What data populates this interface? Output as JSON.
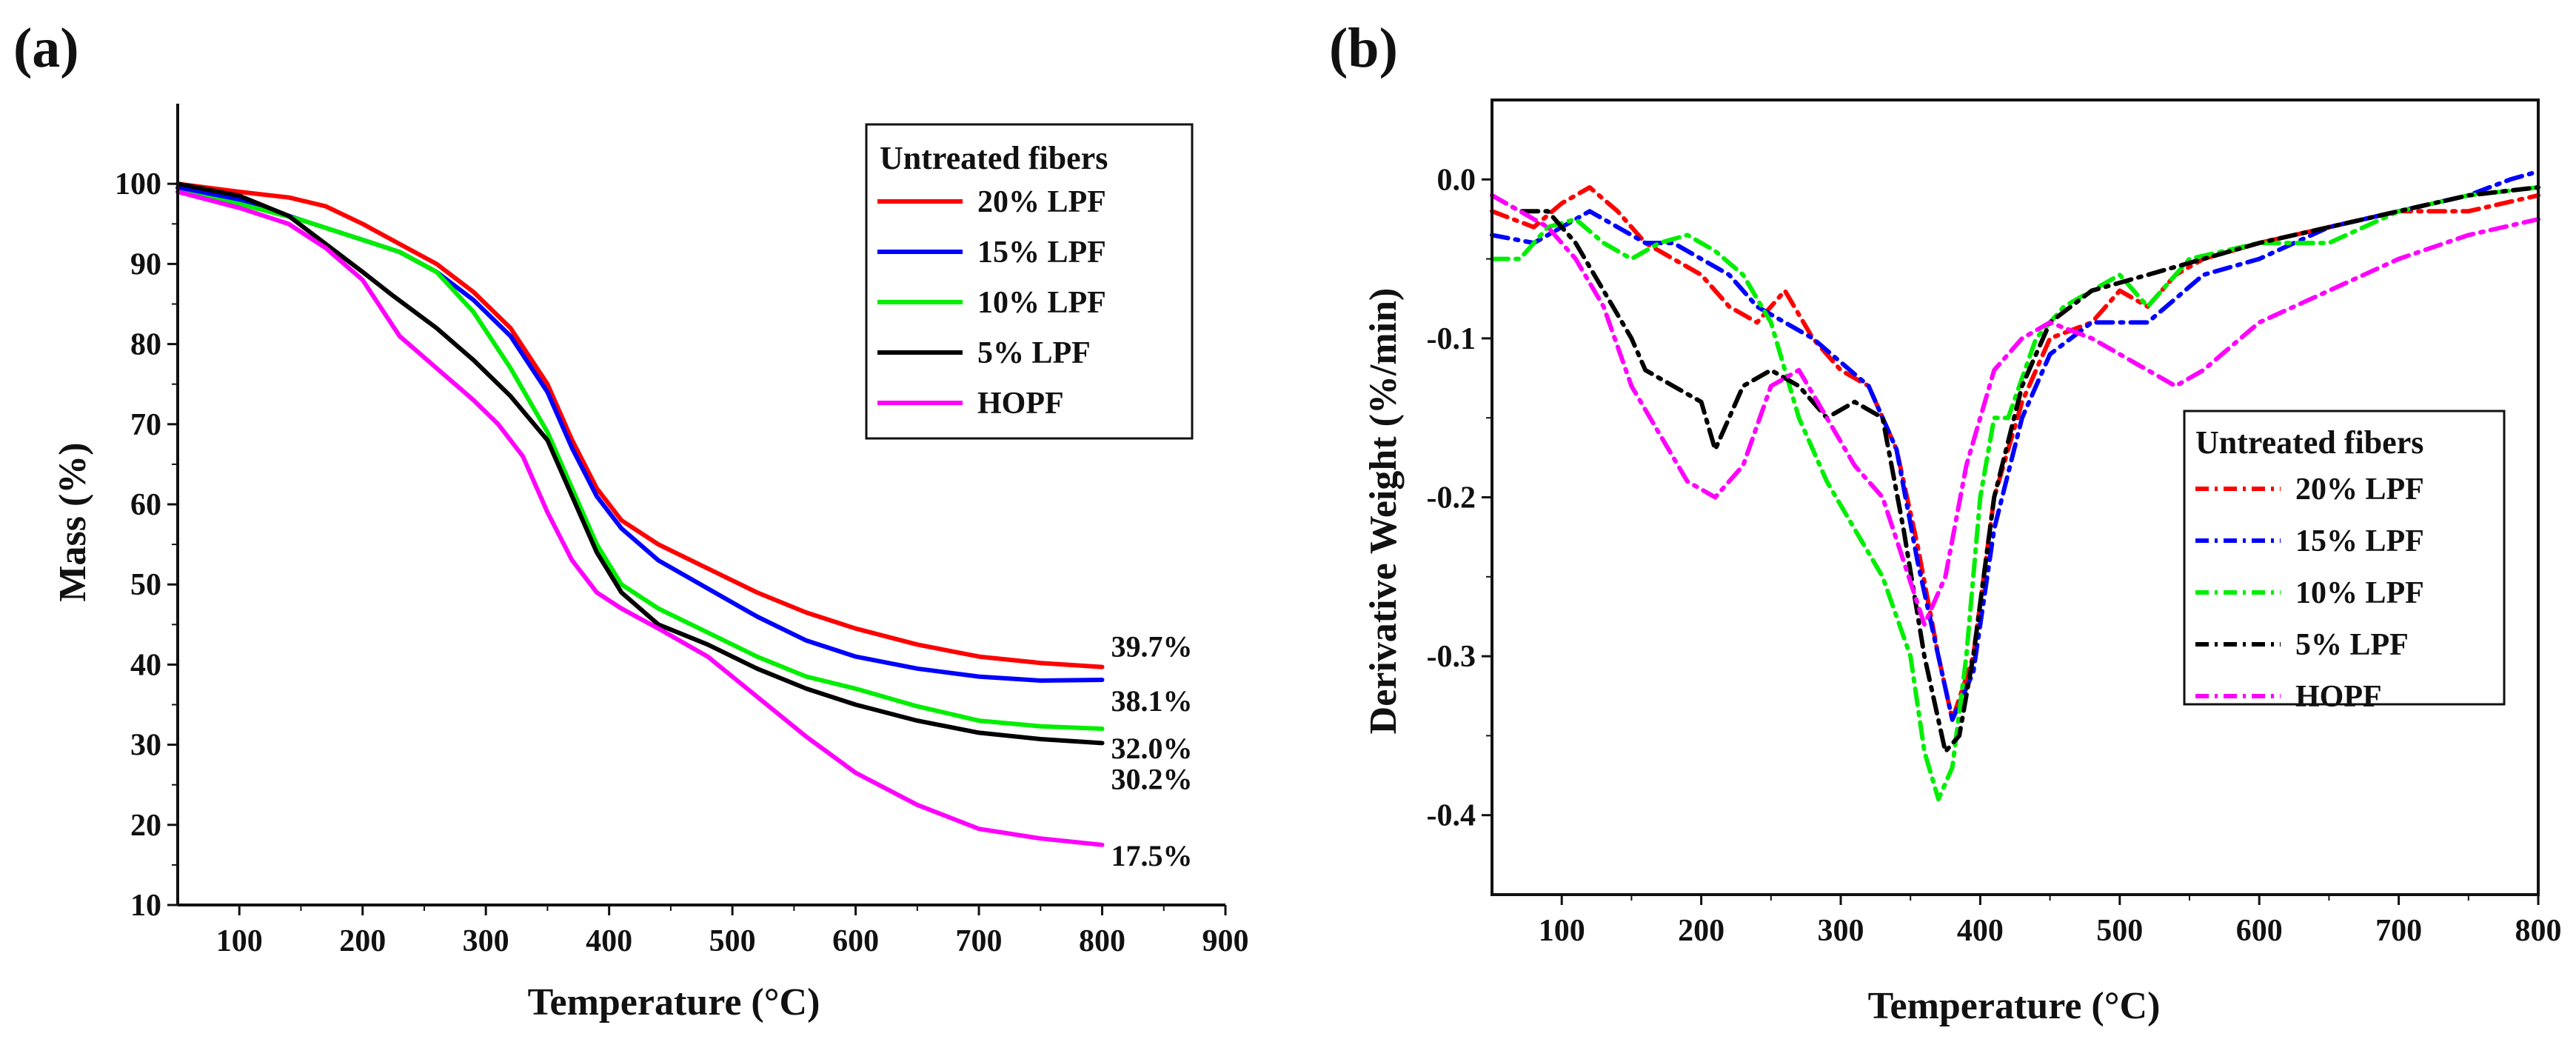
{
  "chart_data": [
    {
      "type": "line",
      "panel_label": "(a)",
      "xlabel": "Temperature (°C)",
      "ylabel": "Mass (%)",
      "xlim": [
        50,
        900
      ],
      "ylim": [
        10,
        110
      ],
      "xticks": [
        100,
        200,
        300,
        400,
        500,
        600,
        700,
        800,
        900
      ],
      "yticks": [
        10,
        20,
        30,
        40,
        50,
        60,
        70,
        80,
        90,
        100
      ],
      "legend_title": "Untreated fibers",
      "legend_position": "top-right",
      "series": [
        {
          "name": " 20% LPF",
          "color": "#ff0000",
          "dash": "solid",
          "end_label": "39.7%",
          "x": [
            50,
            100,
            140,
            170,
            200,
            230,
            260,
            290,
            320,
            350,
            370,
            390,
            410,
            440,
            480,
            520,
            560,
            600,
            650,
            700,
            750,
            800
          ],
          "y": [
            100,
            99,
            98.3,
            97.2,
            95,
            92.5,
            90,
            86.5,
            82,
            75,
            68,
            62,
            58,
            55,
            52,
            49,
            46.5,
            44.5,
            42.5,
            41,
            40.2,
            39.7
          ]
        },
        {
          "name": "15% LPF",
          "color": "#0000ff",
          "dash": "solid",
          "end_label": "38.1%",
          "x": [
            50,
            100,
            140,
            170,
            200,
            230,
            260,
            290,
            320,
            350,
            370,
            390,
            410,
            440,
            480,
            520,
            560,
            600,
            650,
            700,
            750,
            800
          ],
          "y": [
            99.5,
            98,
            96,
            94.5,
            93,
            91.5,
            89,
            85.5,
            81,
            74,
            67,
            61,
            57,
            53,
            49.5,
            46,
            43,
            41,
            39.5,
            38.5,
            38,
            38.1
          ]
        },
        {
          "name": "10% LPF",
          "color": "#00ee00",
          "dash": "solid",
          "end_label": "32.0%",
          "x": [
            50,
            100,
            150,
            200,
            230,
            260,
            290,
            320,
            350,
            370,
            390,
            410,
            440,
            480,
            520,
            560,
            600,
            650,
            700,
            750,
            800
          ],
          "y": [
            99,
            97.5,
            95.5,
            93,
            91.5,
            89,
            84,
            77,
            69,
            62,
            55,
            50,
            47,
            44,
            41,
            38.5,
            37,
            34.8,
            33,
            32.3,
            32.0
          ]
        },
        {
          "name": "5% LPF",
          "color": "#000000",
          "dash": "solid",
          "end_label": "30.2%",
          "x": [
            50,
            100,
            140,
            170,
            200,
            225,
            260,
            290,
            320,
            350,
            370,
            390,
            410,
            440,
            480,
            520,
            560,
            600,
            650,
            700,
            750,
            800
          ],
          "y": [
            100,
            98.5,
            96,
            92.5,
            89,
            86,
            82,
            78,
            73.5,
            68,
            61,
            54,
            49,
            45,
            42.5,
            39.5,
            37,
            35,
            33,
            31.5,
            30.7,
            30.2
          ]
        },
        {
          "name": "HOPF",
          "color": "#ff00ff",
          "dash": "solid",
          "end_label": "17.5%",
          "x": [
            50,
            100,
            140,
            170,
            200,
            230,
            260,
            290,
            310,
            330,
            350,
            370,
            390,
            410,
            440,
            480,
            520,
            560,
            600,
            650,
            700,
            750,
            800
          ],
          "y": [
            99,
            97,
            95,
            92,
            88,
            81,
            77,
            73,
            70,
            66,
            59,
            53,
            49,
            47,
            44.5,
            41,
            36,
            31,
            26.5,
            22.5,
            19.5,
            18.3,
            17.5
          ]
        }
      ]
    },
    {
      "type": "line",
      "panel_label": "(b)",
      "xlabel": "Temperature (°C)",
      "ylabel": "Derivative Weight (%/min)",
      "xlim": [
        50,
        800
      ],
      "ylim": [
        -0.45,
        0.05
      ],
      "xticks": [
        100,
        200,
        300,
        400,
        500,
        600,
        700,
        800
      ],
      "yticks": [
        0.0,
        -0.1,
        -0.2,
        -0.3,
        -0.4
      ],
      "ytick_labels": [
        "0.0",
        "-0.1",
        "-0.2",
        "-0.3",
        "-0.4"
      ],
      "legend_title": "Untreated fibers",
      "legend_position": "center-right",
      "series": [
        {
          "name": "20% LPF",
          "color": "#ff0000",
          "dash": "dashdot",
          "x": [
            50,
            80,
            100,
            120,
            140,
            160,
            180,
            200,
            220,
            240,
            260,
            280,
            300,
            320,
            340,
            355,
            370,
            380,
            395,
            410,
            430,
            450,
            480,
            500,
            520,
            540,
            560,
            600,
            650,
            700,
            750,
            800
          ],
          "y": [
            -0.02,
            -0.03,
            -0.015,
            -0.005,
            -0.02,
            -0.04,
            -0.05,
            -0.06,
            -0.08,
            -0.09,
            -0.07,
            -0.1,
            -0.12,
            -0.13,
            -0.17,
            -0.23,
            -0.3,
            -0.34,
            -0.3,
            -0.2,
            -0.14,
            -0.1,
            -0.09,
            -0.07,
            -0.08,
            -0.06,
            -0.05,
            -0.04,
            -0.03,
            -0.02,
            -0.02,
            -0.01
          ]
        },
        {
          "name": "15% LPF",
          "color": "#0000ff",
          "dash": "dashdot",
          "x": [
            50,
            80,
            100,
            120,
            140,
            160,
            180,
            200,
            220,
            240,
            260,
            280,
            300,
            320,
            340,
            355,
            370,
            380,
            395,
            410,
            430,
            450,
            480,
            520,
            560,
            600,
            650,
            700,
            750,
            780,
            800
          ],
          "y": [
            -0.035,
            -0.04,
            -0.03,
            -0.02,
            -0.03,
            -0.04,
            -0.04,
            -0.05,
            -0.06,
            -0.08,
            -0.09,
            -0.1,
            -0.115,
            -0.13,
            -0.17,
            -0.24,
            -0.3,
            -0.34,
            -0.31,
            -0.22,
            -0.15,
            -0.11,
            -0.09,
            -0.09,
            -0.06,
            -0.05,
            -0.03,
            -0.02,
            -0.01,
            0.0,
            0.005
          ]
        },
        {
          "name": "10% LPF",
          "color": "#00ee00",
          "dash": "dashdot",
          "x": [
            50,
            70,
            90,
            110,
            130,
            150,
            170,
            190,
            210,
            230,
            250,
            270,
            290,
            310,
            330,
            350,
            360,
            370,
            380,
            390,
            400,
            410,
            420,
            440,
            460,
            480,
            500,
            520,
            550,
            600,
            650,
            700,
            750,
            800
          ],
          "y": [
            -0.05,
            -0.05,
            -0.03,
            -0.025,
            -0.04,
            -0.05,
            -0.04,
            -0.035,
            -0.045,
            -0.06,
            -0.09,
            -0.15,
            -0.19,
            -0.22,
            -0.25,
            -0.3,
            -0.36,
            -0.39,
            -0.37,
            -0.3,
            -0.2,
            -0.15,
            -0.15,
            -0.1,
            -0.08,
            -0.07,
            -0.06,
            -0.08,
            -0.05,
            -0.04,
            -0.04,
            -0.02,
            -0.01,
            -0.005
          ]
        },
        {
          "name": "5% LPF",
          "color": "#000000",
          "dash": "dashdot",
          "x": [
            50,
            70,
            90,
            110,
            130,
            150,
            160,
            180,
            200,
            210,
            230,
            250,
            270,
            290,
            310,
            330,
            345,
            360,
            375,
            385,
            395,
            410,
            430,
            450,
            480,
            520,
            560,
            600,
            650,
            700,
            750,
            800
          ],
          "y": [
            -0.01,
            -0.02,
            -0.02,
            -0.04,
            -0.07,
            -0.1,
            -0.12,
            -0.13,
            -0.14,
            -0.17,
            -0.13,
            -0.12,
            -0.13,
            -0.15,
            -0.14,
            -0.15,
            -0.22,
            -0.3,
            -0.36,
            -0.35,
            -0.3,
            -0.2,
            -0.13,
            -0.09,
            -0.07,
            -0.06,
            -0.05,
            -0.04,
            -0.03,
            -0.02,
            -0.01,
            -0.005
          ]
        },
        {
          "name": "HOPF",
          "color": "#ff00ff",
          "dash": "dashdot",
          "x": [
            50,
            70,
            90,
            110,
            130,
            150,
            170,
            190,
            210,
            230,
            250,
            270,
            290,
            310,
            330,
            345,
            360,
            375,
            390,
            410,
            430,
            450,
            480,
            520,
            540,
            560,
            600,
            650,
            700,
            750,
            800
          ],
          "y": [
            -0.01,
            -0.02,
            -0.03,
            -0.05,
            -0.08,
            -0.13,
            -0.16,
            -0.19,
            -0.2,
            -0.18,
            -0.13,
            -0.12,
            -0.15,
            -0.18,
            -0.2,
            -0.24,
            -0.28,
            -0.25,
            -0.18,
            -0.12,
            -0.1,
            -0.09,
            -0.1,
            -0.12,
            -0.13,
            -0.12,
            -0.09,
            -0.07,
            -0.05,
            -0.035,
            -0.025
          ]
        }
      ]
    }
  ]
}
